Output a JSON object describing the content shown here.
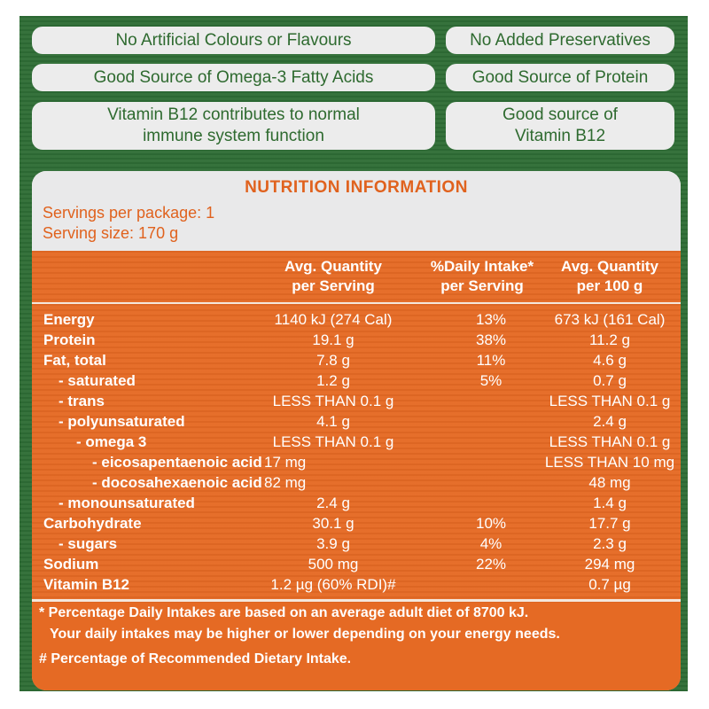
{
  "claims": {
    "no_colours": "No Artificial Colours or Flavours",
    "no_preservatives": "No Added Preservatives",
    "omega3": "Good Source of Omega-3 Fatty Acids",
    "protein": "Good Source of Protein",
    "b12_line1": "Vitamin B12 contributes to normal",
    "b12_line2": "immune system function",
    "b12_source_line1": "Good source of",
    "b12_source_line2": "Vitamin B12"
  },
  "nutrition": {
    "title": "NUTRITION INFORMATION",
    "servings_per_package": "Servings per package: 1",
    "serving_size": "Serving size: 170 g",
    "headers": {
      "col1_line1": "Avg. Quantity",
      "col1_line2": "per Serving",
      "col2_line1": "%Daily Intake*",
      "col2_line2": "per Serving",
      "col3_line1": "Avg. Quantity",
      "col3_line2": "per 100 g"
    },
    "rows": [
      {
        "label": "Energy",
        "per_serving": "1140 kJ (274 Cal)",
        "daily_intake": "13%",
        "per_100g": "673 kJ (161 Cal)"
      },
      {
        "label": "Protein",
        "per_serving": "19.1 g",
        "daily_intake": "38%",
        "per_100g": "11.2 g"
      },
      {
        "label": "Fat, total",
        "per_serving": "7.8 g",
        "daily_intake": "11%",
        "per_100g": "4.6 g"
      },
      {
        "label": "- saturated",
        "per_serving": "1.2 g",
        "daily_intake": "5%",
        "per_100g": "0.7 g"
      },
      {
        "label": "- trans",
        "per_serving": "LESS THAN 0.1 g",
        "daily_intake": "",
        "per_100g": "LESS THAN 0.1 g"
      },
      {
        "label": "- polyunsaturated",
        "per_serving": "4.1 g",
        "daily_intake": "",
        "per_100g": "2.4 g"
      },
      {
        "label": "- omega 3",
        "per_serving": "LESS THAN 0.1 g",
        "daily_intake": "",
        "per_100g": "LESS THAN 0.1 g"
      },
      {
        "label": "- eicosapentaenoic acid",
        "per_serving": "17 mg",
        "daily_intake": "",
        "per_100g": "LESS THAN 10 mg"
      },
      {
        "label": "- docosahexaenoic acid",
        "per_serving": "82 mg",
        "daily_intake": "",
        "per_100g": "48 mg"
      },
      {
        "label": "- monounsaturated",
        "per_serving": "2.4 g",
        "daily_intake": "",
        "per_100g": "1.4 g"
      },
      {
        "label": "Carbohydrate",
        "per_serving": "30.1 g",
        "daily_intake": "10%",
        "per_100g": "17.7 g"
      },
      {
        "label": "- sugars",
        "per_serving": "3.9 g",
        "daily_intake": "4%",
        "per_100g": "2.3 g"
      },
      {
        "label": "Sodium",
        "per_serving": "500 mg",
        "daily_intake": "22%",
        "per_100g": "294 mg"
      },
      {
        "label": "Vitamin B12",
        "per_serving": "1.2 µg (60% RDI)#",
        "daily_intake": "",
        "per_100g": "0.7 µg"
      }
    ],
    "footnotes": {
      "line1": "* Percentage Daily Intakes are based on an average adult diet of 8700 kJ.",
      "line2": "Your daily intakes may be higher or lower depending on your energy needs.",
      "line3": "# Percentage of Recommended Dietary Intake."
    }
  }
}
